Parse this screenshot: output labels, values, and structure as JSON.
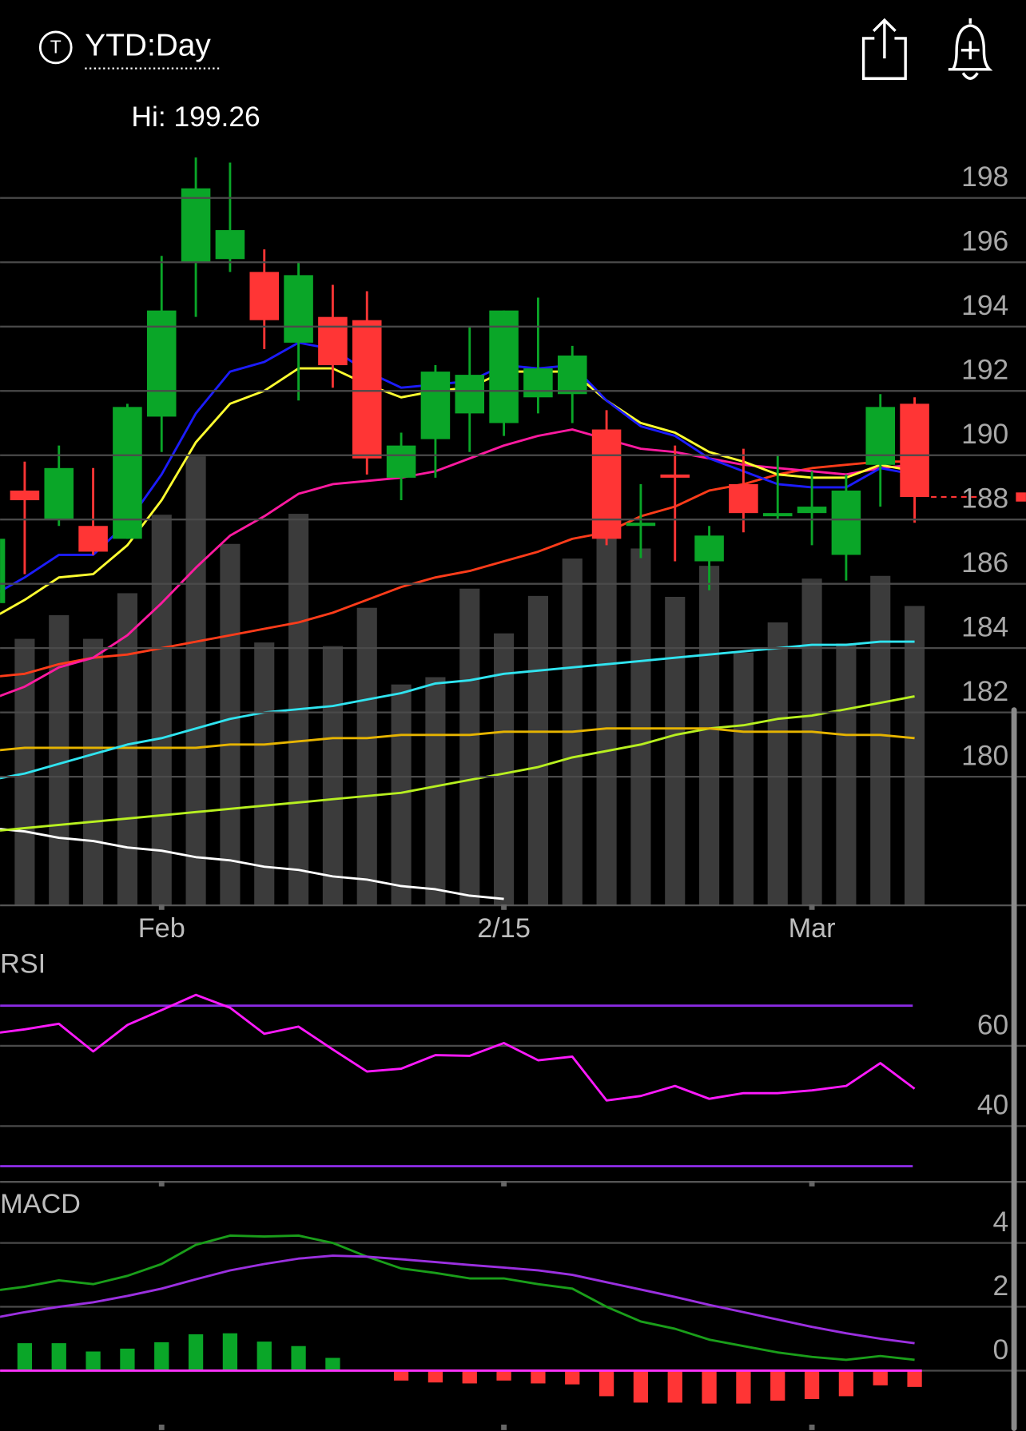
{
  "header": {
    "icon_letter": "T",
    "title": "YTD:Day"
  },
  "chart_data": [
    {
      "type": "candlestick",
      "annotation": "Hi: 199.26",
      "categories": [
        null,
        null,
        null,
        null,
        null,
        "Feb",
        null,
        null,
        null,
        null,
        null,
        null,
        null,
        null,
        null,
        "2/15",
        null,
        null,
        null,
        null,
        null,
        null,
        null,
        null,
        "Mar",
        null,
        null,
        null
      ],
      "open": [
        185.4,
        188.9,
        188.0,
        187.8,
        187.4,
        191.2,
        196.0,
        196.1,
        195.7,
        193.5,
        194.3,
        194.2,
        189.3,
        190.5,
        191.3,
        191.0,
        191.8,
        191.9,
        190.8,
        187.8,
        189.4,
        186.7,
        189.1,
        188.1,
        188.2,
        186.9,
        189.7,
        191.6
      ],
      "high": [
        187.5,
        189.8,
        190.3,
        189.6,
        191.6,
        196.2,
        199.26,
        199.1,
        196.4,
        196.0,
        195.3,
        195.1,
        190.7,
        192.8,
        194.0,
        194.5,
        194.9,
        193.4,
        191.4,
        189.1,
        190.3,
        187.8,
        190.2,
        190.0,
        189.5,
        189.4,
        191.9,
        191.8
      ],
      "low": [
        185.2,
        186.3,
        187.8,
        186.9,
        187.4,
        190.1,
        194.3,
        195.7,
        193.3,
        191.7,
        192.1,
        189.4,
        188.6,
        189.3,
        190.1,
        190.6,
        191.3,
        191.0,
        187.2,
        186.8,
        186.7,
        185.8,
        187.6,
        188.0,
        187.2,
        186.1,
        188.4,
        187.9
      ],
      "close": [
        187.4,
        188.6,
        189.6,
        187.0,
        191.5,
        194.5,
        198.3,
        197.0,
        194.2,
        195.6,
        192.8,
        189.9,
        190.3,
        192.6,
        192.5,
        194.5,
        192.7,
        193.1,
        187.4,
        187.9,
        189.3,
        187.5,
        188.2,
        188.2,
        188.4,
        188.9,
        191.5,
        188.7
      ],
      "up_color": "#0aa628",
      "down_color": "#ff3535",
      "volume": [
        null,
        292,
        318,
        292,
        342,
        428,
        492,
        396,
        288,
        429,
        284,
        326,
        242,
        250,
        347,
        298,
        339,
        380,
        402,
        391,
        338,
        372,
        277,
        310,
        358,
        287,
        361,
        328
      ],
      "volume_color": "#3b3b3b",
      "volume_lim": [
        0,
        842
      ],
      "series": [
        {
          "color": "#ffffff",
          "values": [
            178.4,
            178.3,
            178.1,
            178.0,
            177.8,
            177.7,
            177.5,
            177.4,
            177.2,
            177.1,
            176.9,
            176.8,
            176.6,
            176.5,
            176.3,
            176.2,
            null,
            null,
            null,
            null,
            null,
            null,
            null,
            null,
            null,
            null,
            null,
            null
          ]
        },
        {
          "color": "#b8f020",
          "values": [
            178.3,
            178.4,
            178.5,
            178.6,
            178.7,
            178.8,
            178.9,
            179.0,
            179.1,
            179.2,
            179.3,
            179.4,
            179.5,
            179.7,
            179.9,
            180.1,
            180.3,
            180.6,
            180.8,
            181.0,
            181.3,
            181.5,
            181.6,
            181.8,
            181.9,
            182.1,
            182.3,
            182.5
          ]
        },
        {
          "color": "#e6b400",
          "values": [
            180.8,
            180.9,
            180.9,
            180.9,
            180.9,
            180.9,
            180.9,
            181.0,
            181.0,
            181.1,
            181.2,
            181.2,
            181.3,
            181.3,
            181.3,
            181.4,
            181.4,
            181.4,
            181.5,
            181.5,
            181.5,
            181.5,
            181.4,
            181.4,
            181.4,
            181.3,
            181.3,
            181.2
          ]
        },
        {
          "color": "#30e4f0",
          "values": [
            179.9,
            180.1,
            180.4,
            180.7,
            181.0,
            181.2,
            181.5,
            181.8,
            182.0,
            182.1,
            182.2,
            182.4,
            182.6,
            182.9,
            183.0,
            183.2,
            183.3,
            183.4,
            183.5,
            183.6,
            183.7,
            183.8,
            183.9,
            184.0,
            184.1,
            184.1,
            184.2,
            184.2
          ]
        },
        {
          "color": "#ff3c1a",
          "values": [
            183.1,
            183.2,
            183.5,
            183.7,
            183.8,
            184.0,
            184.2,
            184.4,
            184.6,
            184.8,
            185.1,
            185.5,
            185.9,
            186.2,
            186.4,
            186.7,
            187.0,
            187.4,
            187.6,
            188.1,
            188.4,
            188.9,
            189.1,
            189.4,
            189.6,
            189.7,
            189.8,
            189.8
          ]
        },
        {
          "color": "#ff1aa0",
          "values": [
            182.4,
            182.8,
            183.4,
            183.7,
            184.4,
            185.4,
            186.5,
            187.5,
            188.1,
            188.8,
            189.1,
            189.2,
            189.3,
            189.5,
            189.9,
            190.3,
            190.6,
            190.8,
            190.5,
            190.2,
            190.1,
            189.9,
            189.7,
            189.6,
            189.5,
            189.4,
            189.6,
            189.7
          ]
        },
        {
          "color": "#ffff30",
          "values": [
            184.9,
            185.5,
            186.2,
            186.3,
            187.2,
            188.6,
            190.4,
            191.6,
            192.0,
            192.7,
            192.7,
            192.2,
            191.8,
            192.0,
            192.1,
            192.6,
            192.6,
            192.6,
            191.7,
            191.0,
            190.7,
            190.1,
            189.8,
            189.4,
            189.3,
            189.3,
            189.7,
            189.5
          ]
        },
        {
          "color": "#1c1cff",
          "values": [
            185.6,
            186.2,
            186.9,
            186.9,
            187.9,
            189.4,
            191.3,
            192.6,
            192.9,
            193.5,
            193.3,
            192.6,
            192.1,
            192.2,
            192.3,
            192.8,
            192.7,
            192.8,
            191.7,
            190.9,
            190.6,
            189.9,
            189.5,
            189.1,
            189.0,
            189.0,
            189.6,
            189.4
          ]
        }
      ],
      "ylim": [
        176.0,
        199.9
      ],
      "yticks": [
        180,
        182,
        184,
        186,
        188,
        190,
        192,
        194,
        196,
        198
      ],
      "grid": true,
      "last_price_line": true
    },
    {
      "type": "line",
      "title": "RSI",
      "series": [
        {
          "color": "#ff1aff",
          "values": [
            63.0,
            64.1,
            65.5,
            58.6,
            65.2,
            68.9,
            72.7,
            69.5,
            63.0,
            64.8,
            59.1,
            53.6,
            54.3,
            57.7,
            57.5,
            60.7,
            56.4,
            57.3,
            46.4,
            47.5,
            50.0,
            46.8,
            48.2,
            48.2,
            48.9,
            50.0,
            55.7,
            49.3
          ]
        }
      ],
      "levels": [
        30,
        70
      ],
      "level_color": "#8a2be2",
      "ylim": [
        26.1,
        84.1
      ],
      "yticks": [
        40,
        60
      ],
      "grid": true
    },
    {
      "type": "macd",
      "title": "MACD",
      "series": [
        {
          "color": "#1a9e1a",
          "values": [
            2.49,
            2.63,
            2.83,
            2.71,
            2.97,
            3.34,
            3.94,
            4.23,
            4.2,
            4.23,
            4.0,
            3.57,
            3.2,
            3.06,
            2.89,
            2.89,
            2.71,
            2.57,
            2.0,
            1.54,
            1.31,
            0.97,
            0.77,
            0.57,
            0.43,
            0.34,
            0.46,
            0.34
          ]
        },
        {
          "color": "#9b30e0",
          "values": [
            1.63,
            1.83,
            2.0,
            2.14,
            2.34,
            2.57,
            2.86,
            3.14,
            3.34,
            3.51,
            3.6,
            3.57,
            3.49,
            3.4,
            3.31,
            3.23,
            3.14,
            3.0,
            2.77,
            2.54,
            2.31,
            2.06,
            1.83,
            1.6,
            1.37,
            1.17,
            1.0,
            0.86
          ]
        }
      ],
      "histogram": {
        "values": [
          null,
          0.86,
          0.86,
          0.6,
          0.69,
          0.89,
          1.14,
          1.17,
          0.91,
          0.77,
          0.4,
          0.0,
          -0.31,
          -0.37,
          -0.4,
          -0.31,
          -0.4,
          -0.43,
          -0.8,
          -1.0,
          -1.0,
          -1.03,
          -1.03,
          -0.94,
          -0.89,
          -0.8,
          -0.46,
          -0.51
        ],
        "up_color": "#0aa628",
        "down_color": "#ff3535"
      },
      "zero_line_color": "#ff33ff",
      "ylim": [
        -1.89,
        5.77
      ],
      "yticks": [
        0,
        2,
        4
      ],
      "grid": true
    }
  ]
}
